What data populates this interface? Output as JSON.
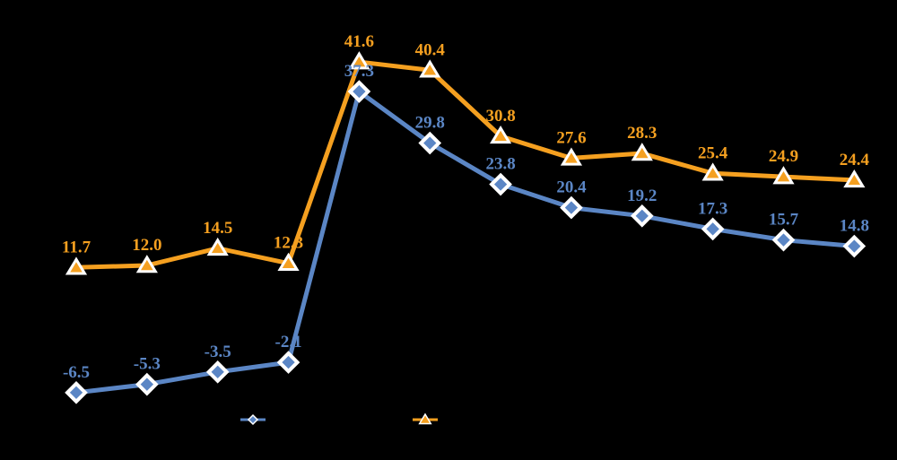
{
  "chart_data": {
    "type": "line",
    "categories": [
      "",
      "",
      "",
      "",
      "",
      "",
      "",
      "",
      "",
      "",
      "",
      ""
    ],
    "ylim": [
      -12,
      48
    ],
    "grid": false,
    "legend_position": "bottom-center",
    "series": [
      {
        "color": "#5B86C5",
        "marker": "diamond",
        "values": [
          -6.5,
          -5.3,
          -3.5,
          -2.1,
          37.3,
          29.8,
          23.8,
          20.4,
          19.2,
          17.3,
          15.7,
          14.8
        ],
        "labels": [
          "-6.5",
          "-5.3",
          "-3.5",
          "-2.1",
          "37.3",
          "29.8",
          "23.8",
          "20.4",
          "19.2",
          "17.3",
          "15.7",
          "14.8"
        ]
      },
      {
        "color": "#F5A020",
        "marker": "triangle",
        "values": [
          11.7,
          12.0,
          14.5,
          12.3,
          41.6,
          40.4,
          30.8,
          27.6,
          28.3,
          25.4,
          24.9,
          24.4
        ],
        "labels": [
          "11.7",
          "12.0",
          "14.5",
          "12.3",
          "41.6",
          "40.4",
          "30.8",
          "27.6",
          "28.3",
          "25.4",
          "24.9",
          "24.4"
        ]
      }
    ]
  }
}
